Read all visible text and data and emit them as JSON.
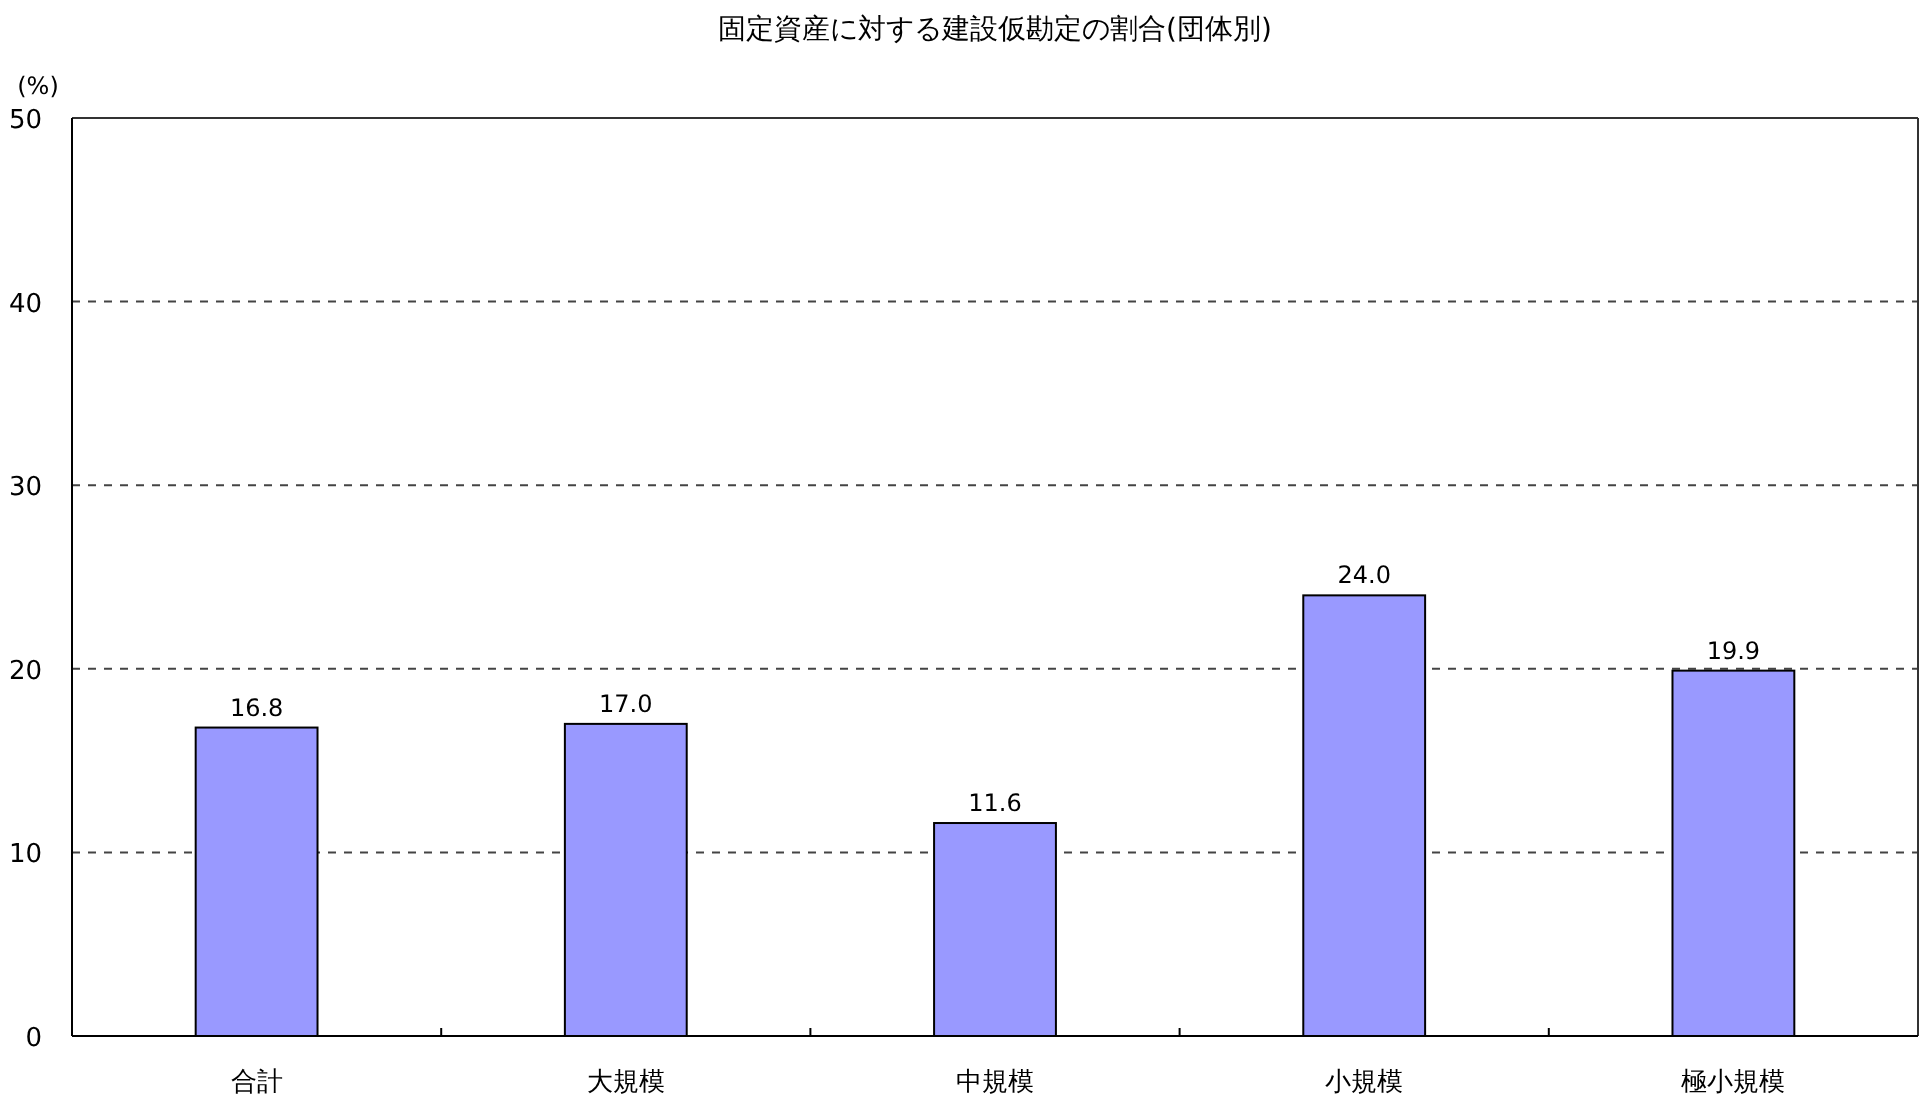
{
  "chart_data": {
    "type": "bar",
    "title": "固定資産に対する建設仮勘定の割合(団体別)",
    "ylabel": "(%)",
    "categories": [
      "合計",
      "大規模",
      "中規模",
      "小規模",
      "極小規模"
    ],
    "values": [
      16.8,
      17.0,
      11.6,
      24.0,
      19.9
    ],
    "value_labels": [
      "16.8",
      "17.0",
      "11.6",
      "24.0",
      "19.9"
    ],
    "color": "#9999ff",
    "ylim": [
      0,
      50
    ],
    "yticks": [
      0,
      10,
      20,
      30,
      40,
      50
    ],
    "grid": "y"
  }
}
